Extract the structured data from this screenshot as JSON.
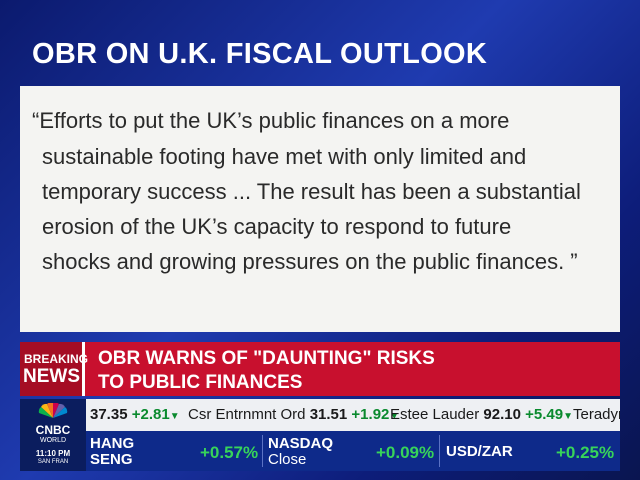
{
  "header": {
    "title": "OBR ON U.K. FISCAL OUTLOOK"
  },
  "quote": {
    "lines": [
      "“Efforts to put the UK’s public finances on a more",
      "sustainable footing have met with only limited and",
      "temporary success ... The result has been a substantial",
      "erosion of the UK’s capacity to respond to future",
      "shocks and growing pressures on the public finances. ”"
    ]
  },
  "breaking": {
    "label": [
      "BREAKING",
      "NEWS"
    ],
    "headline": [
      "OBR WARNS OF \"DAUNTING\" RISKS",
      "TO PUBLIC FINANCES"
    ]
  },
  "ticker": [
    {
      "price": "37.35",
      "change": "+2.81"
    },
    {
      "name": "Csr Entrnmnt Ord",
      "price": "31.51",
      "change": "+1.92"
    },
    {
      "name": "Estee Lauder",
      "price": "92.10",
      "change": "+5.49"
    },
    {
      "name": "Teradyn"
    }
  ],
  "logo": {
    "name": "CNBC",
    "region": "WORLD",
    "time": "11:10 PM",
    "city": "SAN FRAN"
  },
  "indices": [
    {
      "name": [
        "HANG",
        "SENG"
      ],
      "change": "+0.57%"
    },
    {
      "name": [
        "NASDAQ",
        "Close"
      ],
      "change": "+0.09%"
    },
    {
      "name": [
        "USD/ZAR"
      ],
      "change": "+0.25%"
    }
  ]
}
